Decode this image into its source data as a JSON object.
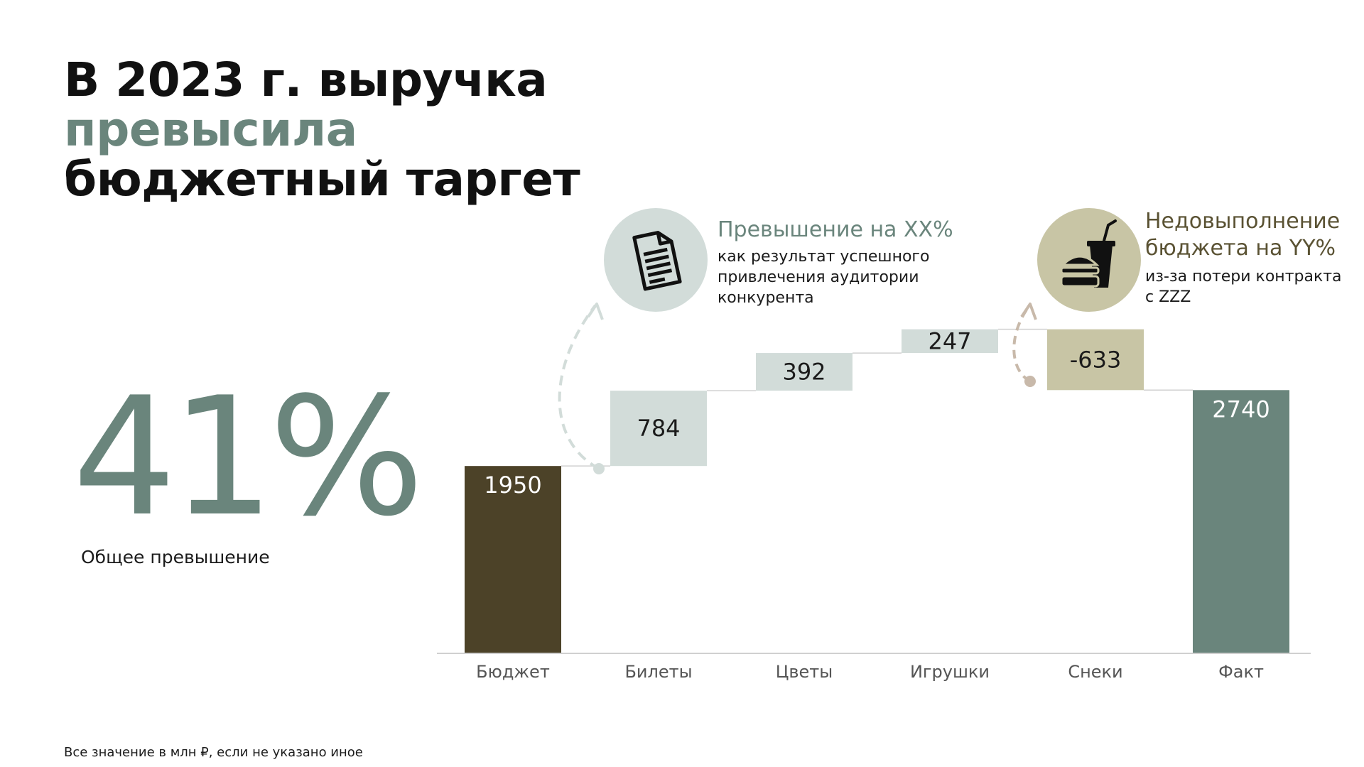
{
  "title": {
    "line1": "В 2023 г. выручка",
    "line2": "превысила",
    "line3": "бюджетный таргет"
  },
  "kpi": {
    "value": "41%",
    "label": "Общее превышение"
  },
  "callouts": {
    "left": {
      "icon": "document-icon",
      "heading": "Превышение на XX%",
      "body_lines": [
        "как результат успешного",
        "привлечения аудитории",
        "конкурента"
      ]
    },
    "right": {
      "icon": "fast-food-icon",
      "heading_lines": [
        "Недовыполнение",
        "бюджета на YY%"
      ],
      "body_lines": [
        "из-за потери контракта",
        "с ZZZ"
      ]
    }
  },
  "footnote": "Все значение в млн ₽, если не указано иное",
  "colors": {
    "accent": "#6a857c",
    "budget": "#4c4228",
    "increase": "#d2dcd9",
    "decrease": "#c8c5a5",
    "total": "#6a857c",
    "axis": "#d0d0d0",
    "callout_left_circle": "#d2dcd9",
    "callout_right_circle": "#c8c5a5",
    "heading_right": "#5a5233"
  },
  "chart_data": {
    "type": "waterfall",
    "categories": [
      "Бюджет",
      "Билеты",
      "Цветы",
      "Игрушки",
      "Снеки",
      "Факт"
    ],
    "values": [
      1950,
      784,
      392,
      247,
      -633,
      2740
    ],
    "kinds": [
      "total",
      "increase",
      "increase",
      "increase",
      "decrease",
      "total"
    ],
    "data_labels": [
      "1950",
      "784",
      "392",
      "247",
      "-633",
      "2740"
    ],
    "ylim": [
      0,
      3400
    ],
    "grid": false,
    "legend": "none"
  }
}
